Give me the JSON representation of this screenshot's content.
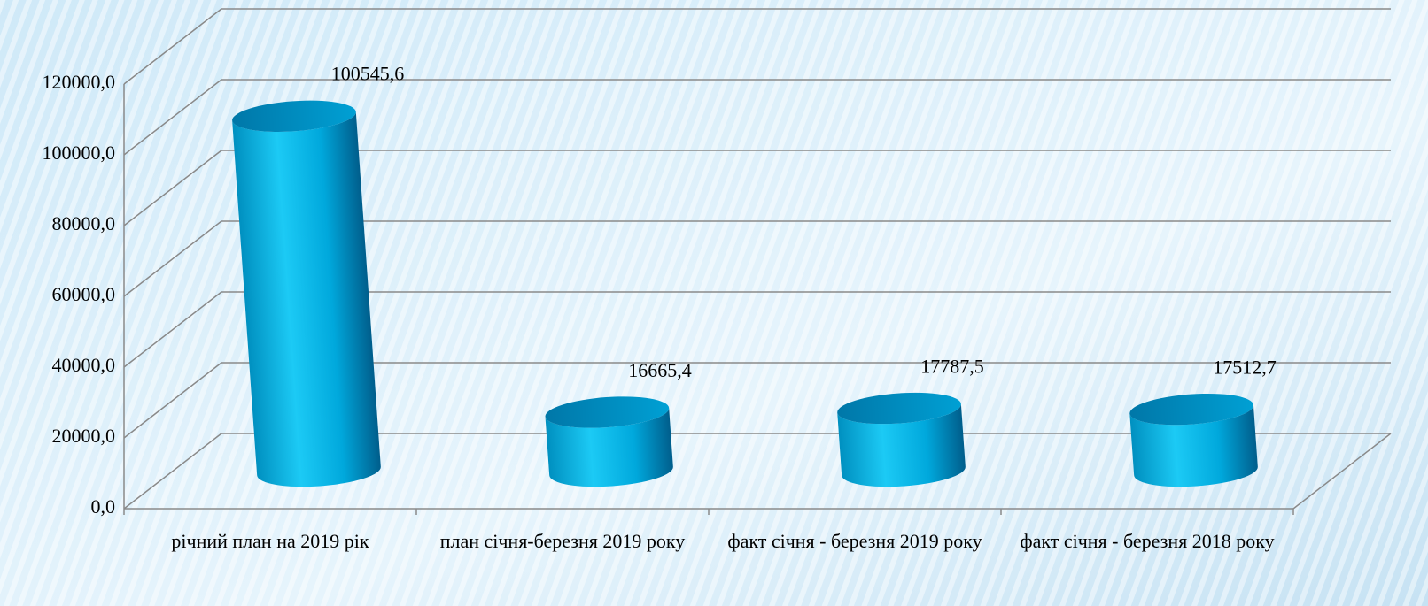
{
  "chart_data": {
    "type": "cylinder",
    "categories": [
      "річний план на 2019 рік",
      "план січня-березня 2019 року",
      "факт січня - березня 2019 року",
      "факт січня - березня 2018 року"
    ],
    "values": [
      100545.6,
      16665.4,
      17787.5,
      17512.7
    ],
    "value_labels": [
      "100545,6",
      "16665,4",
      "17787,5",
      "17512,7"
    ],
    "color": "#00a6d6",
    "ylim": [
      0,
      120000
    ],
    "yticks": [
      {
        "value": 0,
        "label": "0,0"
      },
      {
        "value": 20000,
        "label": "20000,0"
      },
      {
        "value": 40000,
        "label": "40000,0"
      },
      {
        "value": 60000,
        "label": "60000,0"
      },
      {
        "value": 80000,
        "label": "80000,0"
      },
      {
        "value": 100000,
        "label": "100000,0"
      },
      {
        "value": 120000,
        "label": "120000,0"
      }
    ],
    "grid": true
  }
}
